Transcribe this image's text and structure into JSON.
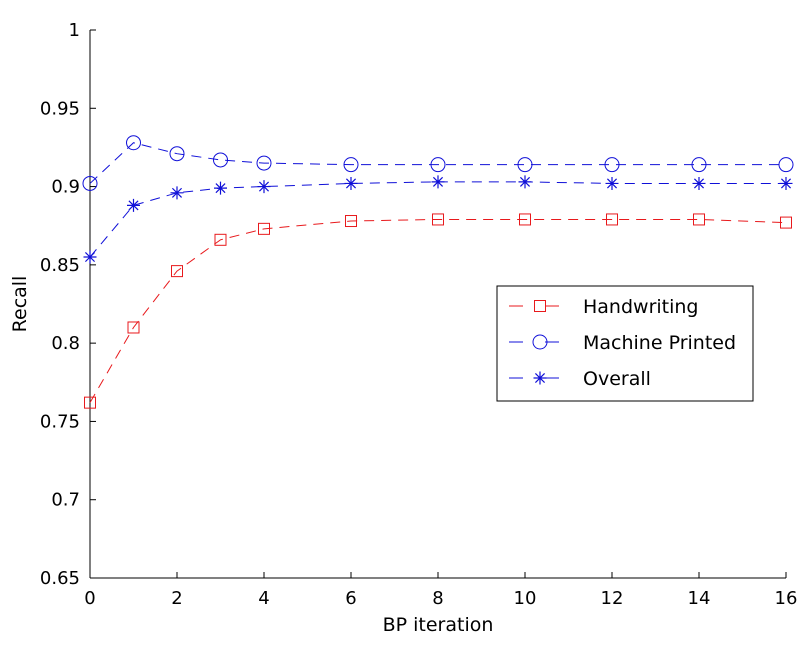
{
  "chart_data": {
    "type": "line",
    "title": "",
    "xlabel": "BP iteration",
    "ylabel": "Recall",
    "xlim": [
      0,
      16
    ],
    "ylim": [
      0.65,
      1
    ],
    "xticks": [
      0,
      2,
      4,
      6,
      8,
      10,
      12,
      14,
      16
    ],
    "yticks": [
      0.65,
      0.7,
      0.75,
      0.8,
      0.85,
      0.9,
      0.95,
      1
    ],
    "ytick_labels": [
      "0.65",
      "0.7",
      "0.75",
      "0.8",
      "0.85",
      "0.9",
      "0.95",
      "1"
    ],
    "grid": false,
    "legend_position": "right-center",
    "series": [
      {
        "name": "Handwriting",
        "color": "#e8191c",
        "marker": "square",
        "line_style": "dashed",
        "x": [
          0,
          1,
          2,
          3,
          4,
          6,
          8,
          10,
          12,
          14,
          16
        ],
        "values": [
          0.762,
          0.81,
          0.846,
          0.866,
          0.873,
          0.878,
          0.879,
          0.879,
          0.879,
          0.879,
          0.877
        ]
      },
      {
        "name": "Machine Printed",
        "color": "#1010d8",
        "marker": "circle",
        "line_style": "dashed",
        "x": [
          0,
          1,
          2,
          3,
          4,
          6,
          8,
          10,
          12,
          14,
          16
        ],
        "values": [
          0.902,
          0.928,
          0.921,
          0.917,
          0.915,
          0.914,
          0.914,
          0.914,
          0.914,
          0.914,
          0.914
        ]
      },
      {
        "name": "Overall",
        "color": "#1010d8",
        "marker": "asterisk",
        "line_style": "dashed",
        "x": [
          0,
          1,
          2,
          3,
          4,
          6,
          8,
          10,
          12,
          14,
          16
        ],
        "values": [
          0.855,
          0.888,
          0.896,
          0.899,
          0.9,
          0.902,
          0.903,
          0.903,
          0.902,
          0.902,
          0.902
        ]
      }
    ]
  }
}
